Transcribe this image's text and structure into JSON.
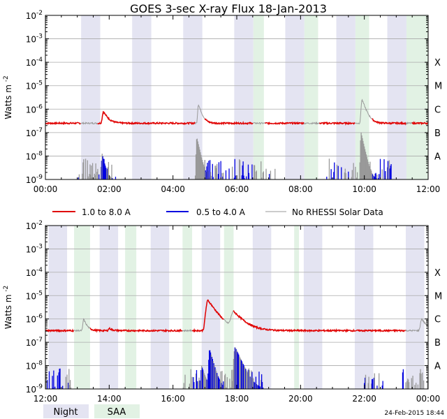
{
  "title": "GOES 3-sec X-ray Flux   18-Jan-2013",
  "footer_date": "24-Feb-2015 18:44",
  "colors": {
    "night": "#e4e4f2",
    "saa": "#e2f2e4",
    "long_channel": "#e00000",
    "short_channel": "#0000e0",
    "no_rhessi": "#999999",
    "grid": "#cccccc",
    "flare_class_line": "#aaaaaa"
  },
  "legend": [
    {
      "label": "1.0 to 8.0 A",
      "color": "#e00000"
    },
    {
      "label": "0.5 to 4.0 A",
      "color": "#0000e0"
    },
    {
      "label": "No RHESSI Solar Data",
      "color": "#999999"
    }
  ],
  "bottom_legend": [
    {
      "label": "Night",
      "color": "#e4e4f2"
    },
    {
      "label": "SAA",
      "color": "#e2f2e4"
    }
  ],
  "chart_data": [
    {
      "type": "line",
      "ylabel": "Watts m",
      "ylabel_superscript": "-2",
      "yscale": "log",
      "ylim_exp": [
        -9,
        -2
      ],
      "ytick_exps": [
        -9,
        -8,
        -7,
        -6,
        -5,
        -4,
        -3,
        -2
      ],
      "flare_classes": [
        {
          "label": "A",
          "exp": -8
        },
        {
          "label": "B",
          "exp": -7
        },
        {
          "label": "C",
          "exp": -6
        },
        {
          "label": "M",
          "exp": -5
        },
        {
          "label": "X",
          "exp": -4
        }
      ],
      "xlim_hours": [
        0,
        12
      ],
      "xtick_hours": [
        0,
        2,
        4,
        6,
        8,
        10,
        12
      ],
      "xtick_labels": [
        "00:00",
        "02:00",
        "04:00",
        "06:00",
        "08:00",
        "10:00",
        "12:00"
      ],
      "night_intervals": [
        [
          1.12,
          1.72
        ],
        [
          2.72,
          3.32
        ],
        [
          4.32,
          4.92
        ],
        [
          5.92,
          6.52
        ],
        [
          7.52,
          8.12
        ],
        [
          9.12,
          9.72
        ],
        [
          10.72,
          11.32
        ]
      ],
      "saa_intervals": [
        [
          6.52,
          6.85
        ],
        [
          8.12,
          8.55
        ],
        [
          9.72,
          10.15
        ],
        [
          11.32,
          12.0
        ]
      ],
      "long_channel": {
        "baseline_exp": -6.6,
        "peaks": [
          {
            "t": 1.82,
            "exp": -6.1,
            "w": 0.07
          },
          {
            "t": 4.8,
            "exp": -5.8,
            "w": 0.05
          },
          {
            "t": 9.93,
            "exp": -5.6,
            "w": 0.06
          }
        ],
        "gap_segments": [
          [
            1.12,
            1.65
          ],
          [
            4.7,
            5.0
          ],
          [
            6.52,
            6.9
          ],
          [
            8.12,
            8.6
          ],
          [
            9.72,
            10.25
          ],
          [
            11.32,
            11.5
          ]
        ]
      },
      "short_channel": {
        "baseline_exp": -9.0,
        "peaks": [
          {
            "t": 1.78,
            "exp": -7.9,
            "w": 0.04
          },
          {
            "t": 4.75,
            "exp": -7.2,
            "w": 0.04
          },
          {
            "t": 9.9,
            "exp": -7.0,
            "w": 0.04
          }
        ],
        "noise_hours": [
          [
            1.0,
            2.2
          ],
          [
            4.8,
            7.2
          ],
          [
            8.8,
            10.9
          ]
        ]
      }
    },
    {
      "type": "line",
      "ylabel": "Watts m",
      "ylabel_superscript": "-2",
      "yscale": "log",
      "ylim_exp": [
        -9,
        -2
      ],
      "ytick_exps": [
        -9,
        -8,
        -7,
        -6,
        -5,
        -4,
        -3,
        -2
      ],
      "flare_classes": [
        {
          "label": "A",
          "exp": -8
        },
        {
          "label": "B",
          "exp": -7
        },
        {
          "label": "C",
          "exp": -6
        },
        {
          "label": "M",
          "exp": -5
        },
        {
          "label": "X",
          "exp": -4
        }
      ],
      "xlim_hours": [
        12,
        24
      ],
      "xtick_hours": [
        12,
        14,
        16,
        18,
        20,
        22,
        24
      ],
      "xtick_labels": [
        "12:00",
        "14:00",
        "16:00",
        "18:00",
        "20:00",
        "22:00",
        "00:00"
      ],
      "night_intervals": [
        [
          12.1,
          12.68
        ],
        [
          13.7,
          14.28
        ],
        [
          15.3,
          15.88
        ],
        [
          16.9,
          17.48
        ],
        [
          18.5,
          19.08
        ],
        [
          20.1,
          20.68
        ],
        [
          21.7,
          22.28
        ],
        [
          23.3,
          23.88
        ]
      ],
      "saa_intervals": [
        [
          12.9,
          13.4
        ],
        [
          14.5,
          14.85
        ],
        [
          16.3,
          16.6
        ],
        [
          17.6,
          17.9
        ],
        [
          19.8,
          19.95
        ]
      ],
      "long_channel": {
        "baseline_exp": -6.5,
        "peaks": [
          {
            "t": 13.2,
            "exp": -6.0,
            "w": 0.05
          },
          {
            "t": 14.0,
            "exp": -6.4,
            "w": 0.05
          },
          {
            "t": 17.1,
            "exp": -5.2,
            "w": 0.12
          },
          {
            "t": 17.9,
            "exp": -5.7,
            "w": 0.15
          },
          {
            "t": 23.8,
            "exp": -6.0,
            "w": 0.08
          }
        ],
        "gap_segments": [
          [
            12.9,
            13.4
          ],
          [
            16.3,
            16.6
          ],
          [
            17.6,
            17.9
          ],
          [
            23.3,
            24.0
          ]
        ]
      },
      "short_channel": {
        "baseline_exp": -9.0,
        "peaks": [
          {
            "t": 16.9,
            "exp": -8.0,
            "w": 0.05
          },
          {
            "t": 17.15,
            "exp": -7.3,
            "w": 0.05
          },
          {
            "t": 17.95,
            "exp": -7.2,
            "w": 0.08
          }
        ],
        "noise_hours": [
          [
            12.0,
            12.8
          ],
          [
            16.3,
            18.8
          ],
          [
            22.0,
            22.6
          ],
          [
            23.2,
            24.0
          ]
        ]
      }
    }
  ]
}
